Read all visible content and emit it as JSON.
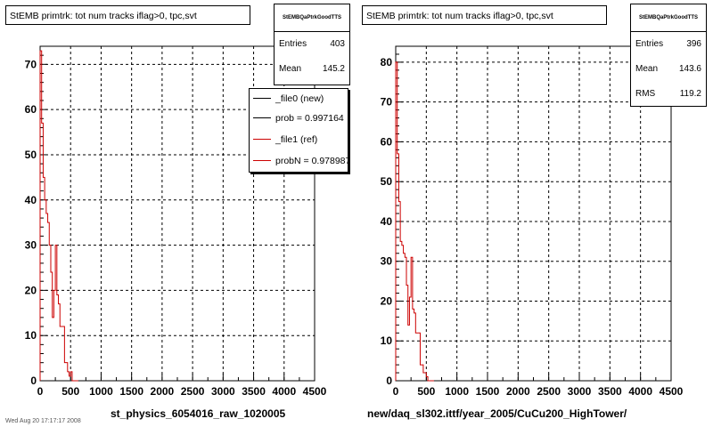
{
  "footer_text": "Wed Aug 20 17:17:17 2008",
  "chart_data": [
    {
      "type": "line",
      "title": "StEMB primtrk: tot num tracks iflag>0, tpc,svt",
      "xlabel": "st_physics_6054016_raw_1020005",
      "ylabel": "",
      "xlim": [
        0,
        4500
      ],
      "ylim": [
        0,
        74
      ],
      "xticks": [
        0,
        500,
        1000,
        1500,
        2000,
        2500,
        3000,
        3500,
        4000,
        4500
      ],
      "yticks": [
        0,
        10,
        20,
        30,
        40,
        50,
        60,
        70
      ],
      "grid": true,
      "stats": {
        "name": "StEMBQaPtrkGoodTTS",
        "rows": [
          {
            "label": "Entries",
            "value": "403"
          },
          {
            "label": "Mean",
            "value": "145.2"
          }
        ]
      },
      "legend": {
        "placement": "top-right",
        "entries": [
          {
            "label": "_file0 (new)",
            "color": "#000000"
          },
          {
            "label": "prob = 0.997164",
            "color": "#000000"
          },
          {
            "label": "_file1 (ref)",
            "color": "#cc0000"
          },
          {
            "label": "probN = 0.978987",
            "color": "#cc0000"
          }
        ]
      },
      "series": [
        {
          "color": "#cc0000",
          "x": [
            0,
            25,
            50,
            75,
            100,
            125,
            150,
            175,
            200,
            225,
            250,
            275,
            300,
            325,
            350,
            375,
            400,
            425,
            450,
            475,
            500,
            525,
            550,
            600
          ],
          "y": [
            73,
            57,
            45,
            40,
            37,
            35,
            30,
            24,
            14,
            20,
            30,
            19,
            17,
            12,
            12,
            12,
            4,
            4,
            2,
            1,
            2,
            0,
            0,
            0
          ]
        }
      ]
    },
    {
      "type": "line",
      "title": "StEMB primtrk: tot num tracks iflag>0, tpc,svt",
      "xlabel": "new/daq_sl302.ittf/year_2005/CuCu200_HighTower/",
      "ylabel": "",
      "xlim": [
        0,
        4500
      ],
      "ylim": [
        0,
        84
      ],
      "xticks": [
        0,
        500,
        1000,
        1500,
        2000,
        2500,
        3000,
        3500,
        4000,
        4500
      ],
      "yticks": [
        0,
        10,
        20,
        30,
        40,
        50,
        60,
        70,
        80
      ],
      "grid": true,
      "stats": {
        "name": "StEMBQaPtrkGoodTTS",
        "rows": [
          {
            "label": "Entries",
            "value": "396"
          },
          {
            "label": "Mean",
            "value": "143.6"
          },
          {
            "label": "RMS",
            "value": "119.2"
          }
        ]
      },
      "series": [
        {
          "color": "#cc0000",
          "x": [
            0,
            25,
            50,
            75,
            100,
            125,
            150,
            175,
            200,
            225,
            250,
            275,
            300,
            325,
            350,
            375,
            400,
            425,
            450,
            475,
            500,
            525,
            550,
            600
          ],
          "y": [
            80,
            57,
            45,
            35,
            34,
            32,
            31,
            24,
            14,
            21,
            31,
            18,
            17,
            12,
            12,
            12,
            4,
            4,
            2,
            2,
            1,
            0,
            0,
            0
          ]
        }
      ]
    }
  ]
}
